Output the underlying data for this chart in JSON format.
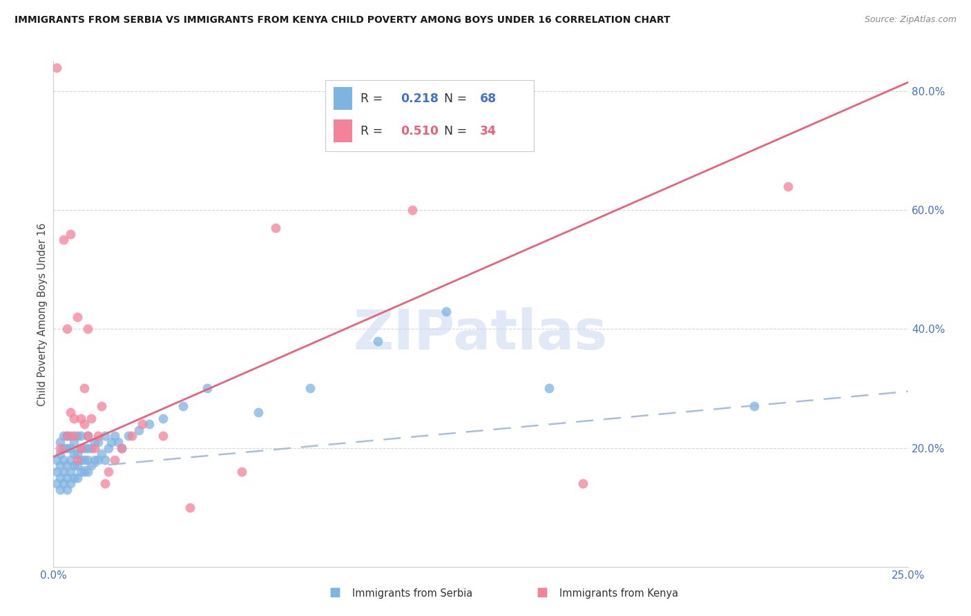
{
  "title": "IMMIGRANTS FROM SERBIA VS IMMIGRANTS FROM KENYA CHILD POVERTY AMONG BOYS UNDER 16 CORRELATION CHART",
  "source": "Source: ZipAtlas.com",
  "ylabel": "Child Poverty Among Boys Under 16",
  "xlim": [
    0.0,
    0.25
  ],
  "ylim": [
    0.0,
    0.85
  ],
  "xticks": [
    0.0,
    0.05,
    0.1,
    0.15,
    0.2,
    0.25
  ],
  "yticks": [
    0.0,
    0.2,
    0.4,
    0.6,
    0.8
  ],
  "ytick_labels": [
    "",
    "20.0%",
    "40.0%",
    "60.0%",
    "80.0%"
  ],
  "xtick_labels": [
    "0.0%",
    "",
    "",
    "",
    "",
    "25.0%"
  ],
  "serbia_R": 0.218,
  "serbia_N": 68,
  "kenya_R": 0.51,
  "kenya_N": 34,
  "serbia_color": "#7EB4E2",
  "kenya_color": "#F4829A",
  "serbia_line_color": "#4472C4",
  "kenya_line_color": "#E8637A",
  "watermark_text": "ZIPatlas",
  "serbia_line_x0": 0.0,
  "serbia_line_y0": 0.163,
  "serbia_line_x1": 0.25,
  "serbia_line_y1": 0.295,
  "kenya_line_x0": 0.0,
  "kenya_line_y0": 0.185,
  "kenya_line_x1": 0.25,
  "kenya_line_y1": 0.815,
  "serbia_x": [
    0.001,
    0.001,
    0.001,
    0.002,
    0.002,
    0.002,
    0.002,
    0.002,
    0.003,
    0.003,
    0.003,
    0.003,
    0.003,
    0.004,
    0.004,
    0.004,
    0.004,
    0.004,
    0.005,
    0.005,
    0.005,
    0.005,
    0.005,
    0.006,
    0.006,
    0.006,
    0.006,
    0.007,
    0.007,
    0.007,
    0.007,
    0.008,
    0.008,
    0.008,
    0.008,
    0.009,
    0.009,
    0.009,
    0.01,
    0.01,
    0.01,
    0.01,
    0.011,
    0.011,
    0.012,
    0.012,
    0.013,
    0.013,
    0.014,
    0.015,
    0.015,
    0.016,
    0.017,
    0.018,
    0.019,
    0.02,
    0.022,
    0.025,
    0.028,
    0.032,
    0.038,
    0.045,
    0.06,
    0.075,
    0.095,
    0.115,
    0.145,
    0.205
  ],
  "serbia_y": [
    0.14,
    0.16,
    0.18,
    0.13,
    0.15,
    0.17,
    0.19,
    0.21,
    0.14,
    0.16,
    0.18,
    0.2,
    0.22,
    0.13,
    0.15,
    0.17,
    0.2,
    0.22,
    0.14,
    0.16,
    0.18,
    0.2,
    0.22,
    0.15,
    0.17,
    0.19,
    0.21,
    0.15,
    0.17,
    0.19,
    0.22,
    0.16,
    0.18,
    0.2,
    0.22,
    0.16,
    0.18,
    0.2,
    0.16,
    0.18,
    0.2,
    0.22,
    0.17,
    0.2,
    0.18,
    0.21,
    0.18,
    0.21,
    0.19,
    0.18,
    0.22,
    0.2,
    0.21,
    0.22,
    0.21,
    0.2,
    0.22,
    0.23,
    0.24,
    0.25,
    0.27,
    0.3,
    0.26,
    0.3,
    0.38,
    0.43,
    0.3,
    0.27
  ],
  "kenya_x": [
    0.001,
    0.002,
    0.003,
    0.004,
    0.004,
    0.005,
    0.005,
    0.006,
    0.006,
    0.007,
    0.007,
    0.008,
    0.008,
    0.009,
    0.009,
    0.01,
    0.01,
    0.011,
    0.012,
    0.013,
    0.014,
    0.015,
    0.016,
    0.018,
    0.02,
    0.023,
    0.026,
    0.032,
    0.04,
    0.055,
    0.065,
    0.105,
    0.155,
    0.215
  ],
  "kenya_y": [
    0.84,
    0.2,
    0.55,
    0.22,
    0.4,
    0.56,
    0.26,
    0.22,
    0.25,
    0.18,
    0.42,
    0.2,
    0.25,
    0.3,
    0.24,
    0.22,
    0.4,
    0.25,
    0.2,
    0.22,
    0.27,
    0.14,
    0.16,
    0.18,
    0.2,
    0.22,
    0.24,
    0.22,
    0.1,
    0.16,
    0.57,
    0.6,
    0.14,
    0.64
  ]
}
